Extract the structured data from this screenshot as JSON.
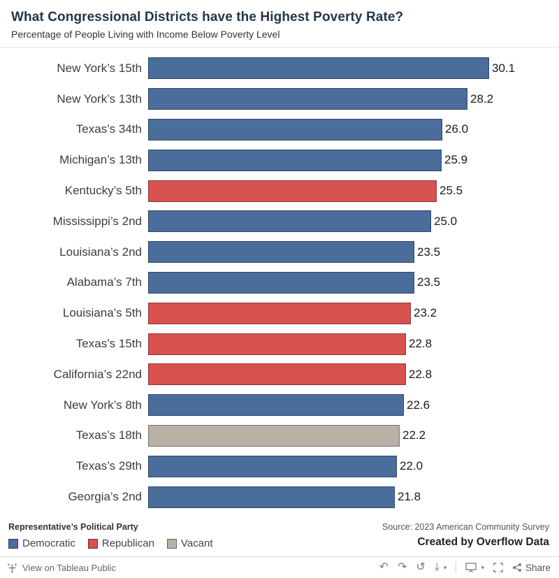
{
  "header": {
    "title": "What Congressional Districts have the Highest Poverty Rate?",
    "subtitle": "Percentage of People Living with Income Below Poverty Level"
  },
  "chart_data": {
    "type": "bar",
    "orientation": "horizontal",
    "title": "What Congressional Districts have the Highest Poverty Rate?",
    "subtitle": "Percentage of People Living with Income Below Poverty Level",
    "xlabel": "",
    "ylabel": "",
    "xlim": [
      0,
      33
    ],
    "grid": false,
    "categories": [
      "New York’s 15th",
      "New York’s 13th",
      "Texas’s 34th",
      "Michigan’s 13th",
      "Kentucky’s 5th",
      "Mississippi’s 2nd",
      "Louisiana’s 2nd",
      "Alabama’s 7th",
      "Louisiana’s 5th",
      "Texas’s 15th",
      "California’s 22nd",
      "New York’s 8th",
      "Texas’s 18th",
      "Texas’s 29th",
      "Georgia’s 2nd"
    ],
    "values": [
      30.1,
      28.2,
      26.0,
      25.9,
      25.5,
      25.0,
      23.5,
      23.5,
      23.2,
      22.8,
      22.8,
      22.6,
      22.2,
      22.0,
      21.8
    ],
    "value_labels": [
      "30.1",
      "28.2",
      "26.0",
      "25.9",
      "25.5",
      "25.0",
      "23.5",
      "23.5",
      "23.2",
      "22.8",
      "22.8",
      "22.6",
      "22.2",
      "22.0",
      "21.8"
    ],
    "parties": [
      "Democratic",
      "Democratic",
      "Democratic",
      "Democratic",
      "Republican",
      "Democratic",
      "Democratic",
      "Democratic",
      "Republican",
      "Republican",
      "Republican",
      "Democratic",
      "Vacant",
      "Democratic",
      "Democratic"
    ],
    "colors": {
      "Democratic": "#4a6d9b",
      "Republican": "#d85250",
      "Vacant": "#b9b1a5"
    },
    "legend_position": "bottom-left"
  },
  "legend": {
    "title": "Representative’s Political Party",
    "items": [
      {
        "label": "Democratic",
        "color": "#4a6d9b"
      },
      {
        "label": "Republican",
        "color": "#d85250"
      },
      {
        "label": "Vacant",
        "color": "#b9b1a5"
      }
    ]
  },
  "source": {
    "line1": "Source: 2023 American Community Survey",
    "line2": "Created by Overflow Data"
  },
  "toolbar": {
    "view_label": "View on Tableau Public",
    "share_label": "Share",
    "glyphs": {
      "undo": "↶",
      "redo": "↷",
      "reset": "↺",
      "download": "⤓",
      "caret": "▾"
    }
  }
}
